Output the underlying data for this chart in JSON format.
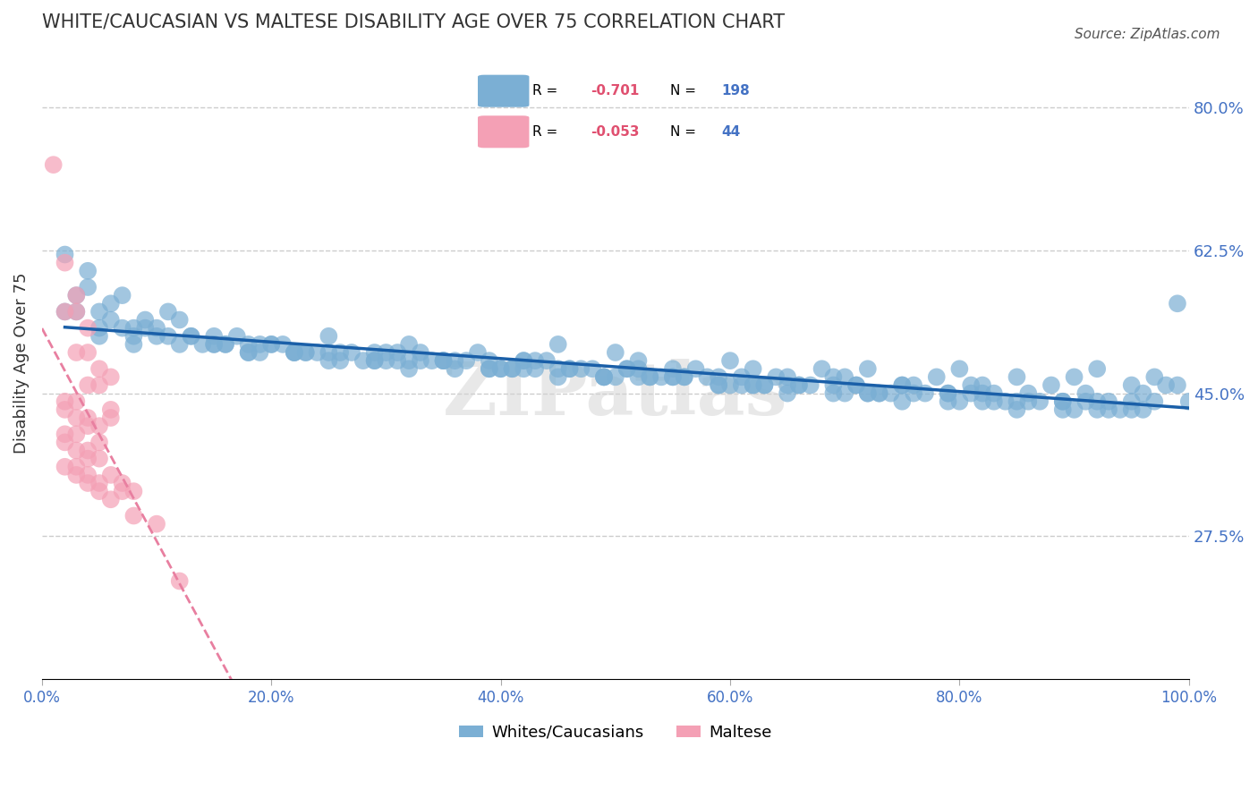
{
  "title": "WHITE/CAUCASIAN VS MALTESE DISABILITY AGE OVER 75 CORRELATION CHART",
  "source": "Source: ZipAtlas.com",
  "ylabel": "Disability Age Over 75",
  "xlabel": "",
  "xlim": [
    0.0,
    1.0
  ],
  "ylim": [
    0.1,
    0.875
  ],
  "yticks": [
    0.275,
    0.45,
    0.625,
    0.8
  ],
  "ytick_labels": [
    "27.5%",
    "45.0%",
    "62.5%",
    "80.0%"
  ],
  "xticks": [
    0.0,
    0.2,
    0.4,
    0.6,
    0.8,
    1.0
  ],
  "xtick_labels": [
    "0.0%",
    "20.0%",
    "40.0%",
    "60.0%",
    "80.0%",
    "100.0%"
  ],
  "blue_R": -0.701,
  "blue_N": 198,
  "pink_R": -0.053,
  "pink_N": 44,
  "blue_color": "#7bafd4",
  "pink_color": "#f4a0b5",
  "blue_line_color": "#1a5fa8",
  "pink_line_color": "#e87fa0",
  "grid_color": "#cccccc",
  "title_color": "#333333",
  "axis_label_color": "#4472c4",
  "legend_R_color": "#e05070",
  "watermark": "ZIPatlas",
  "blue_scatter_x": [
    0.02,
    0.04,
    0.03,
    0.05,
    0.07,
    0.1,
    0.12,
    0.08,
    0.15,
    0.18,
    0.2,
    0.22,
    0.25,
    0.28,
    0.3,
    0.32,
    0.35,
    0.38,
    0.4,
    0.42,
    0.45,
    0.48,
    0.5,
    0.52,
    0.55,
    0.58,
    0.6,
    0.62,
    0.65,
    0.68,
    0.7,
    0.72,
    0.75,
    0.78,
    0.8,
    0.82,
    0.85,
    0.88,
    0.9,
    0.92,
    0.95,
    0.97,
    0.99,
    0.06,
    0.09,
    0.11,
    0.13,
    0.16,
    0.19,
    0.21,
    0.23,
    0.26,
    0.29,
    0.31,
    0.33,
    0.36,
    0.39,
    0.41,
    0.43,
    0.46,
    0.49,
    0.51,
    0.53,
    0.56,
    0.59,
    0.61,
    0.63,
    0.66,
    0.69,
    0.71,
    0.73,
    0.76,
    0.79,
    0.81,
    0.83,
    0.86,
    0.89,
    0.91,
    0.93,
    0.96,
    0.98,
    0.04,
    0.07,
    0.1,
    0.14,
    0.17,
    0.2,
    0.24,
    0.27,
    0.31,
    0.34,
    0.37,
    0.41,
    0.44,
    0.47,
    0.51,
    0.54,
    0.57,
    0.61,
    0.64,
    0.67,
    0.71,
    0.74,
    0.77,
    0.81,
    0.84,
    0.87,
    0.91,
    0.94,
    0.97,
    0.05,
    0.08,
    0.11,
    0.15,
    0.18,
    0.22,
    0.25,
    0.29,
    0.32,
    0.35,
    0.39,
    0.42,
    0.45,
    0.49,
    0.52,
    0.55,
    0.59,
    0.62,
    0.65,
    0.69,
    0.72,
    0.75,
    0.79,
    0.82,
    0.85,
    0.89,
    0.92,
    0.95,
    0.99,
    0.03,
    0.06,
    0.09,
    0.13,
    0.16,
    0.19,
    0.23,
    0.26,
    0.3,
    0.33,
    0.36,
    0.4,
    0.43,
    0.46,
    0.5,
    0.53,
    0.56,
    0.6,
    0.63,
    0.66,
    0.7,
    0.73,
    0.76,
    0.8,
    0.83,
    0.86,
    0.9,
    0.93,
    0.96,
    1.0,
    0.02,
    0.05,
    0.08,
    0.12,
    0.15,
    0.18,
    0.22,
    0.25,
    0.29,
    0.32,
    0.35,
    0.39,
    0.42,
    0.45,
    0.49,
    0.52,
    0.55,
    0.59,
    0.62,
    0.65,
    0.69,
    0.72,
    0.75,
    0.79,
    0.82,
    0.85,
    0.89,
    0.92,
    0.95
  ],
  "blue_scatter_y": [
    0.62,
    0.6,
    0.55,
    0.52,
    0.57,
    0.53,
    0.54,
    0.51,
    0.52,
    0.5,
    0.51,
    0.5,
    0.52,
    0.49,
    0.5,
    0.51,
    0.49,
    0.5,
    0.48,
    0.49,
    0.51,
    0.48,
    0.5,
    0.49,
    0.48,
    0.47,
    0.49,
    0.48,
    0.47,
    0.48,
    0.47,
    0.48,
    0.46,
    0.47,
    0.48,
    0.46,
    0.47,
    0.46,
    0.47,
    0.48,
    0.46,
    0.47,
    0.56,
    0.56,
    0.54,
    0.55,
    0.52,
    0.51,
    0.5,
    0.51,
    0.5,
    0.49,
    0.5,
    0.49,
    0.5,
    0.48,
    0.49,
    0.48,
    0.49,
    0.48,
    0.47,
    0.48,
    0.47,
    0.47,
    0.46,
    0.47,
    0.46,
    0.46,
    0.47,
    0.46,
    0.45,
    0.46,
    0.45,
    0.46,
    0.45,
    0.45,
    0.44,
    0.45,
    0.44,
    0.45,
    0.46,
    0.58,
    0.53,
    0.52,
    0.51,
    0.52,
    0.51,
    0.5,
    0.5,
    0.5,
    0.49,
    0.49,
    0.48,
    0.49,
    0.48,
    0.48,
    0.47,
    0.48,
    0.46,
    0.47,
    0.46,
    0.46,
    0.45,
    0.45,
    0.45,
    0.44,
    0.44,
    0.44,
    0.43,
    0.44,
    0.55,
    0.53,
    0.52,
    0.51,
    0.51,
    0.5,
    0.5,
    0.49,
    0.49,
    0.49,
    0.48,
    0.49,
    0.48,
    0.47,
    0.48,
    0.47,
    0.47,
    0.46,
    0.46,
    0.46,
    0.45,
    0.46,
    0.45,
    0.45,
    0.44,
    0.44,
    0.44,
    0.43,
    0.46,
    0.57,
    0.54,
    0.53,
    0.52,
    0.51,
    0.51,
    0.5,
    0.5,
    0.49,
    0.49,
    0.49,
    0.48,
    0.48,
    0.48,
    0.47,
    0.47,
    0.47,
    0.46,
    0.46,
    0.46,
    0.45,
    0.45,
    0.45,
    0.44,
    0.44,
    0.44,
    0.43,
    0.43,
    0.43,
    0.44,
    0.55,
    0.53,
    0.52,
    0.51,
    0.51,
    0.5,
    0.5,
    0.49,
    0.49,
    0.48,
    0.49,
    0.48,
    0.48,
    0.47,
    0.47,
    0.47,
    0.47,
    0.46,
    0.46,
    0.45,
    0.45,
    0.45,
    0.44,
    0.44,
    0.44,
    0.43,
    0.43,
    0.43,
    0.44
  ],
  "pink_scatter_x": [
    0.01,
    0.02,
    0.03,
    0.02,
    0.04,
    0.03,
    0.05,
    0.04,
    0.06,
    0.03,
    0.02,
    0.04,
    0.05,
    0.03,
    0.02,
    0.06,
    0.04,
    0.05,
    0.03,
    0.04,
    0.05,
    0.07,
    0.08,
    0.1,
    0.12,
    0.06,
    0.03,
    0.04,
    0.05,
    0.02,
    0.03,
    0.04,
    0.02,
    0.05,
    0.03,
    0.04,
    0.06,
    0.07,
    0.08,
    0.02,
    0.03,
    0.04,
    0.05,
    0.06
  ],
  "pink_scatter_y": [
    0.73,
    0.61,
    0.57,
    0.55,
    0.53,
    0.5,
    0.48,
    0.46,
    0.47,
    0.44,
    0.43,
    0.42,
    0.41,
    0.4,
    0.39,
    0.42,
    0.38,
    0.37,
    0.36,
    0.35,
    0.34,
    0.33,
    0.3,
    0.29,
    0.22,
    0.43,
    0.55,
    0.5,
    0.46,
    0.44,
    0.42,
    0.41,
    0.4,
    0.39,
    0.38,
    0.37,
    0.35,
    0.34,
    0.33,
    0.36,
    0.35,
    0.34,
    0.33,
    0.32
  ]
}
